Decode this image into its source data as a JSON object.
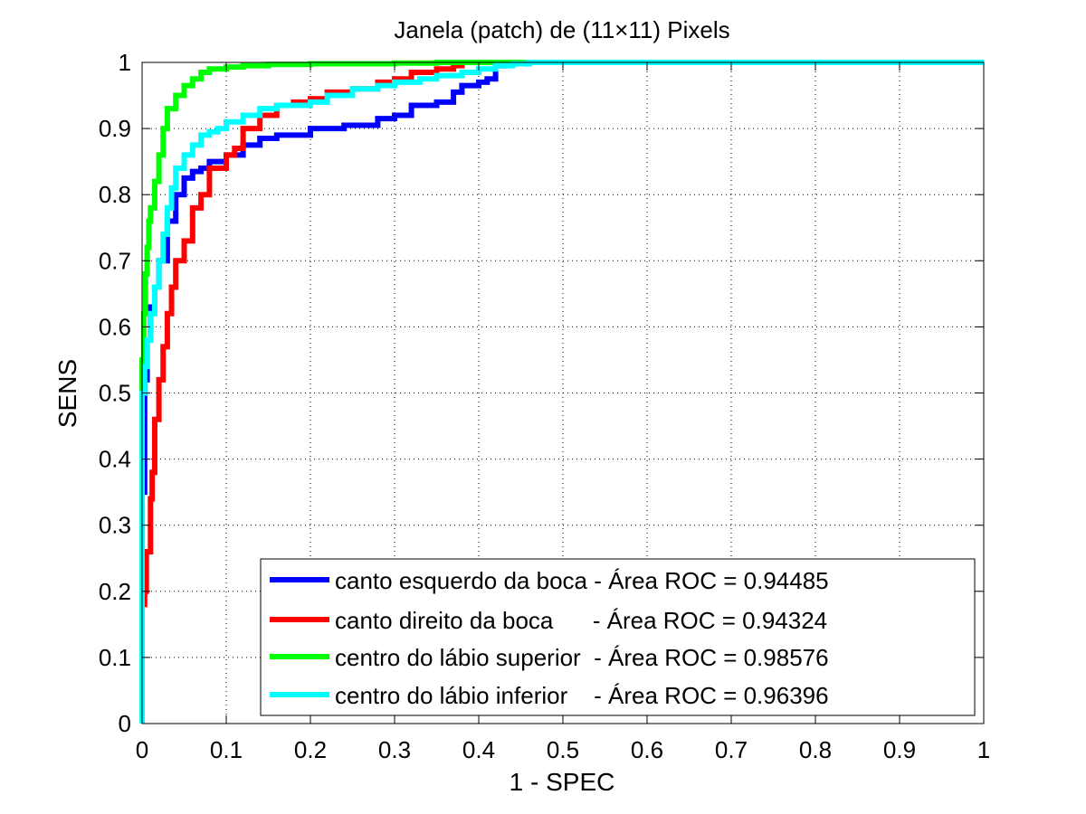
{
  "chart_data": {
    "type": "line",
    "title": "Janela (patch) de (11×11) Pixels",
    "xlabel": "1 - SPEC",
    "ylabel": "SENS",
    "xlim": [
      0,
      1
    ],
    "ylim": [
      0,
      1
    ],
    "grid": true,
    "legend_position": "bottom-right",
    "x_ticks": [
      "0",
      "0.1",
      "0.2",
      "0.3",
      "0.4",
      "0.5",
      "0.6",
      "0.7",
      "0.8",
      "0.9",
      "1"
    ],
    "y_ticks": [
      "0",
      "0.1",
      "0.2",
      "0.3",
      "0.4",
      "0.5",
      "0.6",
      "0.7",
      "0.8",
      "0.9",
      "1"
    ],
    "series": [
      {
        "name": "canto esquerdo da boca - Área ROC = 0.94485",
        "color": "#0000ff",
        "x": [
          0,
          0.003,
          0.006,
          0.01,
          0.015,
          0.02,
          0.03,
          0.04,
          0.05,
          0.06,
          0.07,
          0.08,
          0.1,
          0.12,
          0.14,
          0.16,
          0.18,
          0.2,
          0.24,
          0.28,
          0.3,
          0.32,
          0.35,
          0.37,
          0.38,
          0.4,
          0.41,
          0.42,
          0.43,
          0.45,
          0.5,
          1
        ],
        "y": [
          0,
          0.35,
          0.52,
          0.58,
          0.63,
          0.66,
          0.7,
          0.76,
          0.8,
          0.825,
          0.835,
          0.84,
          0.85,
          0.86,
          0.875,
          0.885,
          0.89,
          0.89,
          0.9,
          0.905,
          0.915,
          0.92,
          0.935,
          0.94,
          0.955,
          0.965,
          0.97,
          0.975,
          0.995,
          1,
          1,
          1
        ]
      },
      {
        "name": "canto direito da boca      - Área ROC = 0.94324",
        "color": "#ff0000",
        "x": [
          0,
          0.003,
          0.005,
          0.01,
          0.012,
          0.015,
          0.02,
          0.025,
          0.03,
          0.035,
          0.04,
          0.05,
          0.06,
          0.07,
          0.08,
          0.1,
          0.11,
          0.12,
          0.14,
          0.16,
          0.18,
          0.2,
          0.22,
          0.25,
          0.28,
          0.3,
          0.32,
          0.35,
          0.37,
          0.38,
          0.4,
          0.45,
          0.5,
          1
        ],
        "y": [
          0,
          0.18,
          0.2,
          0.26,
          0.34,
          0.38,
          0.46,
          0.52,
          0.57,
          0.62,
          0.66,
          0.7,
          0.73,
          0.78,
          0.8,
          0.84,
          0.86,
          0.87,
          0.9,
          0.92,
          0.935,
          0.94,
          0.945,
          0.955,
          0.96,
          0.97,
          0.975,
          0.985,
          0.99,
          0.995,
          1,
          1,
          1,
          1
        ]
      },
      {
        "name": "centro do lábio superior  - Área ROC = 0.98576",
        "color": "#00ff00",
        "x": [
          0,
          0.002,
          0.004,
          0.006,
          0.008,
          0.01,
          0.015,
          0.02,
          0.025,
          0.03,
          0.04,
          0.05,
          0.06,
          0.07,
          0.08,
          0.09,
          0.1,
          0.12,
          0.15,
          0.2,
          0.3,
          0.35,
          0.4,
          1
        ],
        "y": [
          0,
          0.55,
          0.62,
          0.68,
          0.72,
          0.76,
          0.78,
          0.82,
          0.86,
          0.9,
          0.93,
          0.95,
          0.965,
          0.975,
          0.985,
          0.99,
          0.99,
          0.993,
          0.995,
          0.997,
          0.998,
          0.999,
          1,
          1
        ]
      },
      {
        "name": "centro do lábio inferior    - Área ROC = 0.96396",
        "color": "#00ffff",
        "x": [
          0,
          0.003,
          0.006,
          0.01,
          0.015,
          0.02,
          0.025,
          0.03,
          0.035,
          0.04,
          0.05,
          0.06,
          0.07,
          0.08,
          0.09,
          0.1,
          0.12,
          0.14,
          0.16,
          0.18,
          0.2,
          0.22,
          0.25,
          0.28,
          0.3,
          0.33,
          0.35,
          0.38,
          0.4,
          0.42,
          0.44,
          0.46,
          0.47,
          0.5,
          1
        ],
        "y": [
          0,
          0.5,
          0.54,
          0.58,
          0.62,
          0.66,
          0.7,
          0.74,
          0.78,
          0.81,
          0.84,
          0.86,
          0.875,
          0.89,
          0.895,
          0.9,
          0.91,
          0.92,
          0.93,
          0.935,
          0.935,
          0.94,
          0.95,
          0.96,
          0.965,
          0.97,
          0.975,
          0.98,
          0.985,
          0.99,
          0.995,
          0.998,
          1,
          1,
          1
        ]
      }
    ]
  }
}
